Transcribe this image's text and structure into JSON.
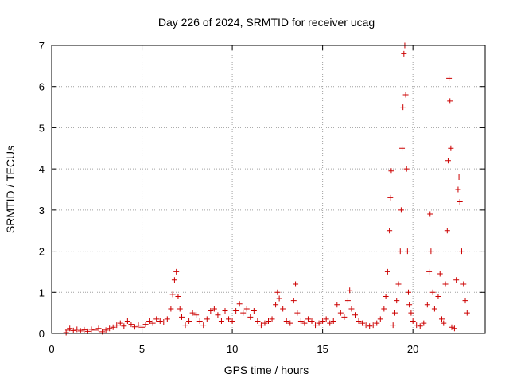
{
  "chart_data": {
    "type": "scatter",
    "title": "Day 226 of 2024, SRMTID for receiver ucag",
    "xlabel": "GPS time / hours",
    "ylabel": "SRMTID / TECUs",
    "xlim": [
      0,
      24
    ],
    "ylim": [
      0,
      7
    ],
    "xticks": [
      0,
      5,
      10,
      15,
      20
    ],
    "yticks": [
      0,
      1,
      2,
      3,
      4,
      5,
      6,
      7
    ],
    "grid": true,
    "marker": "+",
    "color": "#cc0000",
    "series": [
      {
        "name": "SRMTID",
        "points": [
          [
            0.8,
            0.02
          ],
          [
            0.9,
            0.08
          ],
          [
            1.0,
            0.12
          ],
          [
            1.2,
            0.07
          ],
          [
            1.4,
            0.1
          ],
          [
            1.6,
            0.06
          ],
          [
            1.8,
            0.09
          ],
          [
            2.0,
            0.05
          ],
          [
            2.2,
            0.1
          ],
          [
            2.4,
            0.08
          ],
          [
            2.6,
            0.12
          ],
          [
            2.8,
            0.04
          ],
          [
            3.0,
            0.08
          ],
          [
            3.2,
            0.12
          ],
          [
            3.4,
            0.15
          ],
          [
            3.6,
            0.2
          ],
          [
            3.8,
            0.25
          ],
          [
            4.0,
            0.18
          ],
          [
            4.2,
            0.3
          ],
          [
            4.4,
            0.22
          ],
          [
            4.6,
            0.16
          ],
          [
            4.8,
            0.2
          ],
          [
            5.0,
            0.15
          ],
          [
            5.2,
            0.22
          ],
          [
            5.4,
            0.3
          ],
          [
            5.6,
            0.25
          ],
          [
            5.8,
            0.35
          ],
          [
            6.0,
            0.3
          ],
          [
            6.2,
            0.28
          ],
          [
            6.4,
            0.35
          ],
          [
            6.6,
            0.6
          ],
          [
            6.7,
            0.95
          ],
          [
            6.8,
            1.3
          ],
          [
            6.9,
            1.5
          ],
          [
            7.0,
            0.9
          ],
          [
            7.1,
            0.6
          ],
          [
            7.2,
            0.4
          ],
          [
            7.4,
            0.2
          ],
          [
            7.6,
            0.3
          ],
          [
            7.8,
            0.5
          ],
          [
            8.0,
            0.45
          ],
          [
            8.2,
            0.3
          ],
          [
            8.4,
            0.2
          ],
          [
            8.6,
            0.35
          ],
          [
            8.8,
            0.55
          ],
          [
            9.0,
            0.6
          ],
          [
            9.2,
            0.45
          ],
          [
            9.4,
            0.3
          ],
          [
            9.6,
            0.55
          ],
          [
            9.8,
            0.35
          ],
          [
            10.0,
            0.3
          ],
          [
            10.2,
            0.55
          ],
          [
            10.4,
            0.72
          ],
          [
            10.6,
            0.5
          ],
          [
            10.8,
            0.6
          ],
          [
            11.0,
            0.4
          ],
          [
            11.2,
            0.55
          ],
          [
            11.4,
            0.3
          ],
          [
            11.6,
            0.2
          ],
          [
            11.8,
            0.25
          ],
          [
            12.0,
            0.3
          ],
          [
            12.2,
            0.35
          ],
          [
            12.4,
            0.7
          ],
          [
            12.5,
            1.0
          ],
          [
            12.6,
            0.85
          ],
          [
            12.8,
            0.6
          ],
          [
            13.0,
            0.3
          ],
          [
            13.2,
            0.25
          ],
          [
            13.4,
            0.8
          ],
          [
            13.5,
            1.2
          ],
          [
            13.6,
            0.5
          ],
          [
            13.8,
            0.3
          ],
          [
            14.0,
            0.25
          ],
          [
            14.2,
            0.35
          ],
          [
            14.4,
            0.3
          ],
          [
            14.6,
            0.2
          ],
          [
            14.8,
            0.25
          ],
          [
            15.0,
            0.3
          ],
          [
            15.2,
            0.35
          ],
          [
            15.4,
            0.25
          ],
          [
            15.6,
            0.3
          ],
          [
            15.8,
            0.7
          ],
          [
            16.0,
            0.5
          ],
          [
            16.2,
            0.4
          ],
          [
            16.4,
            0.8
          ],
          [
            16.5,
            1.05
          ],
          [
            16.6,
            0.6
          ],
          [
            16.8,
            0.45
          ],
          [
            17.0,
            0.3
          ],
          [
            17.2,
            0.25
          ],
          [
            17.4,
            0.2
          ],
          [
            17.6,
            0.18
          ],
          [
            17.8,
            0.2
          ],
          [
            18.0,
            0.25
          ],
          [
            18.2,
            0.35
          ],
          [
            18.4,
            0.6
          ],
          [
            18.5,
            0.9
          ],
          [
            18.6,
            1.5
          ],
          [
            18.7,
            2.5
          ],
          [
            18.75,
            3.3
          ],
          [
            18.8,
            3.95
          ],
          [
            18.9,
            0.2
          ],
          [
            19.0,
            0.5
          ],
          [
            19.1,
            0.8
          ],
          [
            19.2,
            1.2
          ],
          [
            19.3,
            2.0
          ],
          [
            19.35,
            3.0
          ],
          [
            19.4,
            4.5
          ],
          [
            19.45,
            5.5
          ],
          [
            19.5,
            6.8
          ],
          [
            19.55,
            7.0
          ],
          [
            19.6,
            5.8
          ],
          [
            19.65,
            4.0
          ],
          [
            19.7,
            2.0
          ],
          [
            19.75,
            1.0
          ],
          [
            19.8,
            0.7
          ],
          [
            19.9,
            0.5
          ],
          [
            20.0,
            0.3
          ],
          [
            20.2,
            0.2
          ],
          [
            20.4,
            0.18
          ],
          [
            20.6,
            0.25
          ],
          [
            20.8,
            0.7
          ],
          [
            20.9,
            1.5
          ],
          [
            20.95,
            2.9
          ],
          [
            21.0,
            2.0
          ],
          [
            21.1,
            1.0
          ],
          [
            21.2,
            0.6
          ],
          [
            21.4,
            0.9
          ],
          [
            21.5,
            1.45
          ],
          [
            21.6,
            0.35
          ],
          [
            21.7,
            0.25
          ],
          [
            21.8,
            1.2
          ],
          [
            21.9,
            2.5
          ],
          [
            21.95,
            4.2
          ],
          [
            22.0,
            6.2
          ],
          [
            22.05,
            5.65
          ],
          [
            22.1,
            4.5
          ],
          [
            22.15,
            0.15
          ],
          [
            22.3,
            0.12
          ],
          [
            22.4,
            1.3
          ],
          [
            22.5,
            3.5
          ],
          [
            22.55,
            3.8
          ],
          [
            22.6,
            3.2
          ],
          [
            22.7,
            2.0
          ],
          [
            22.8,
            1.2
          ],
          [
            22.9,
            0.8
          ],
          [
            23.0,
            0.5
          ]
        ]
      }
    ]
  }
}
